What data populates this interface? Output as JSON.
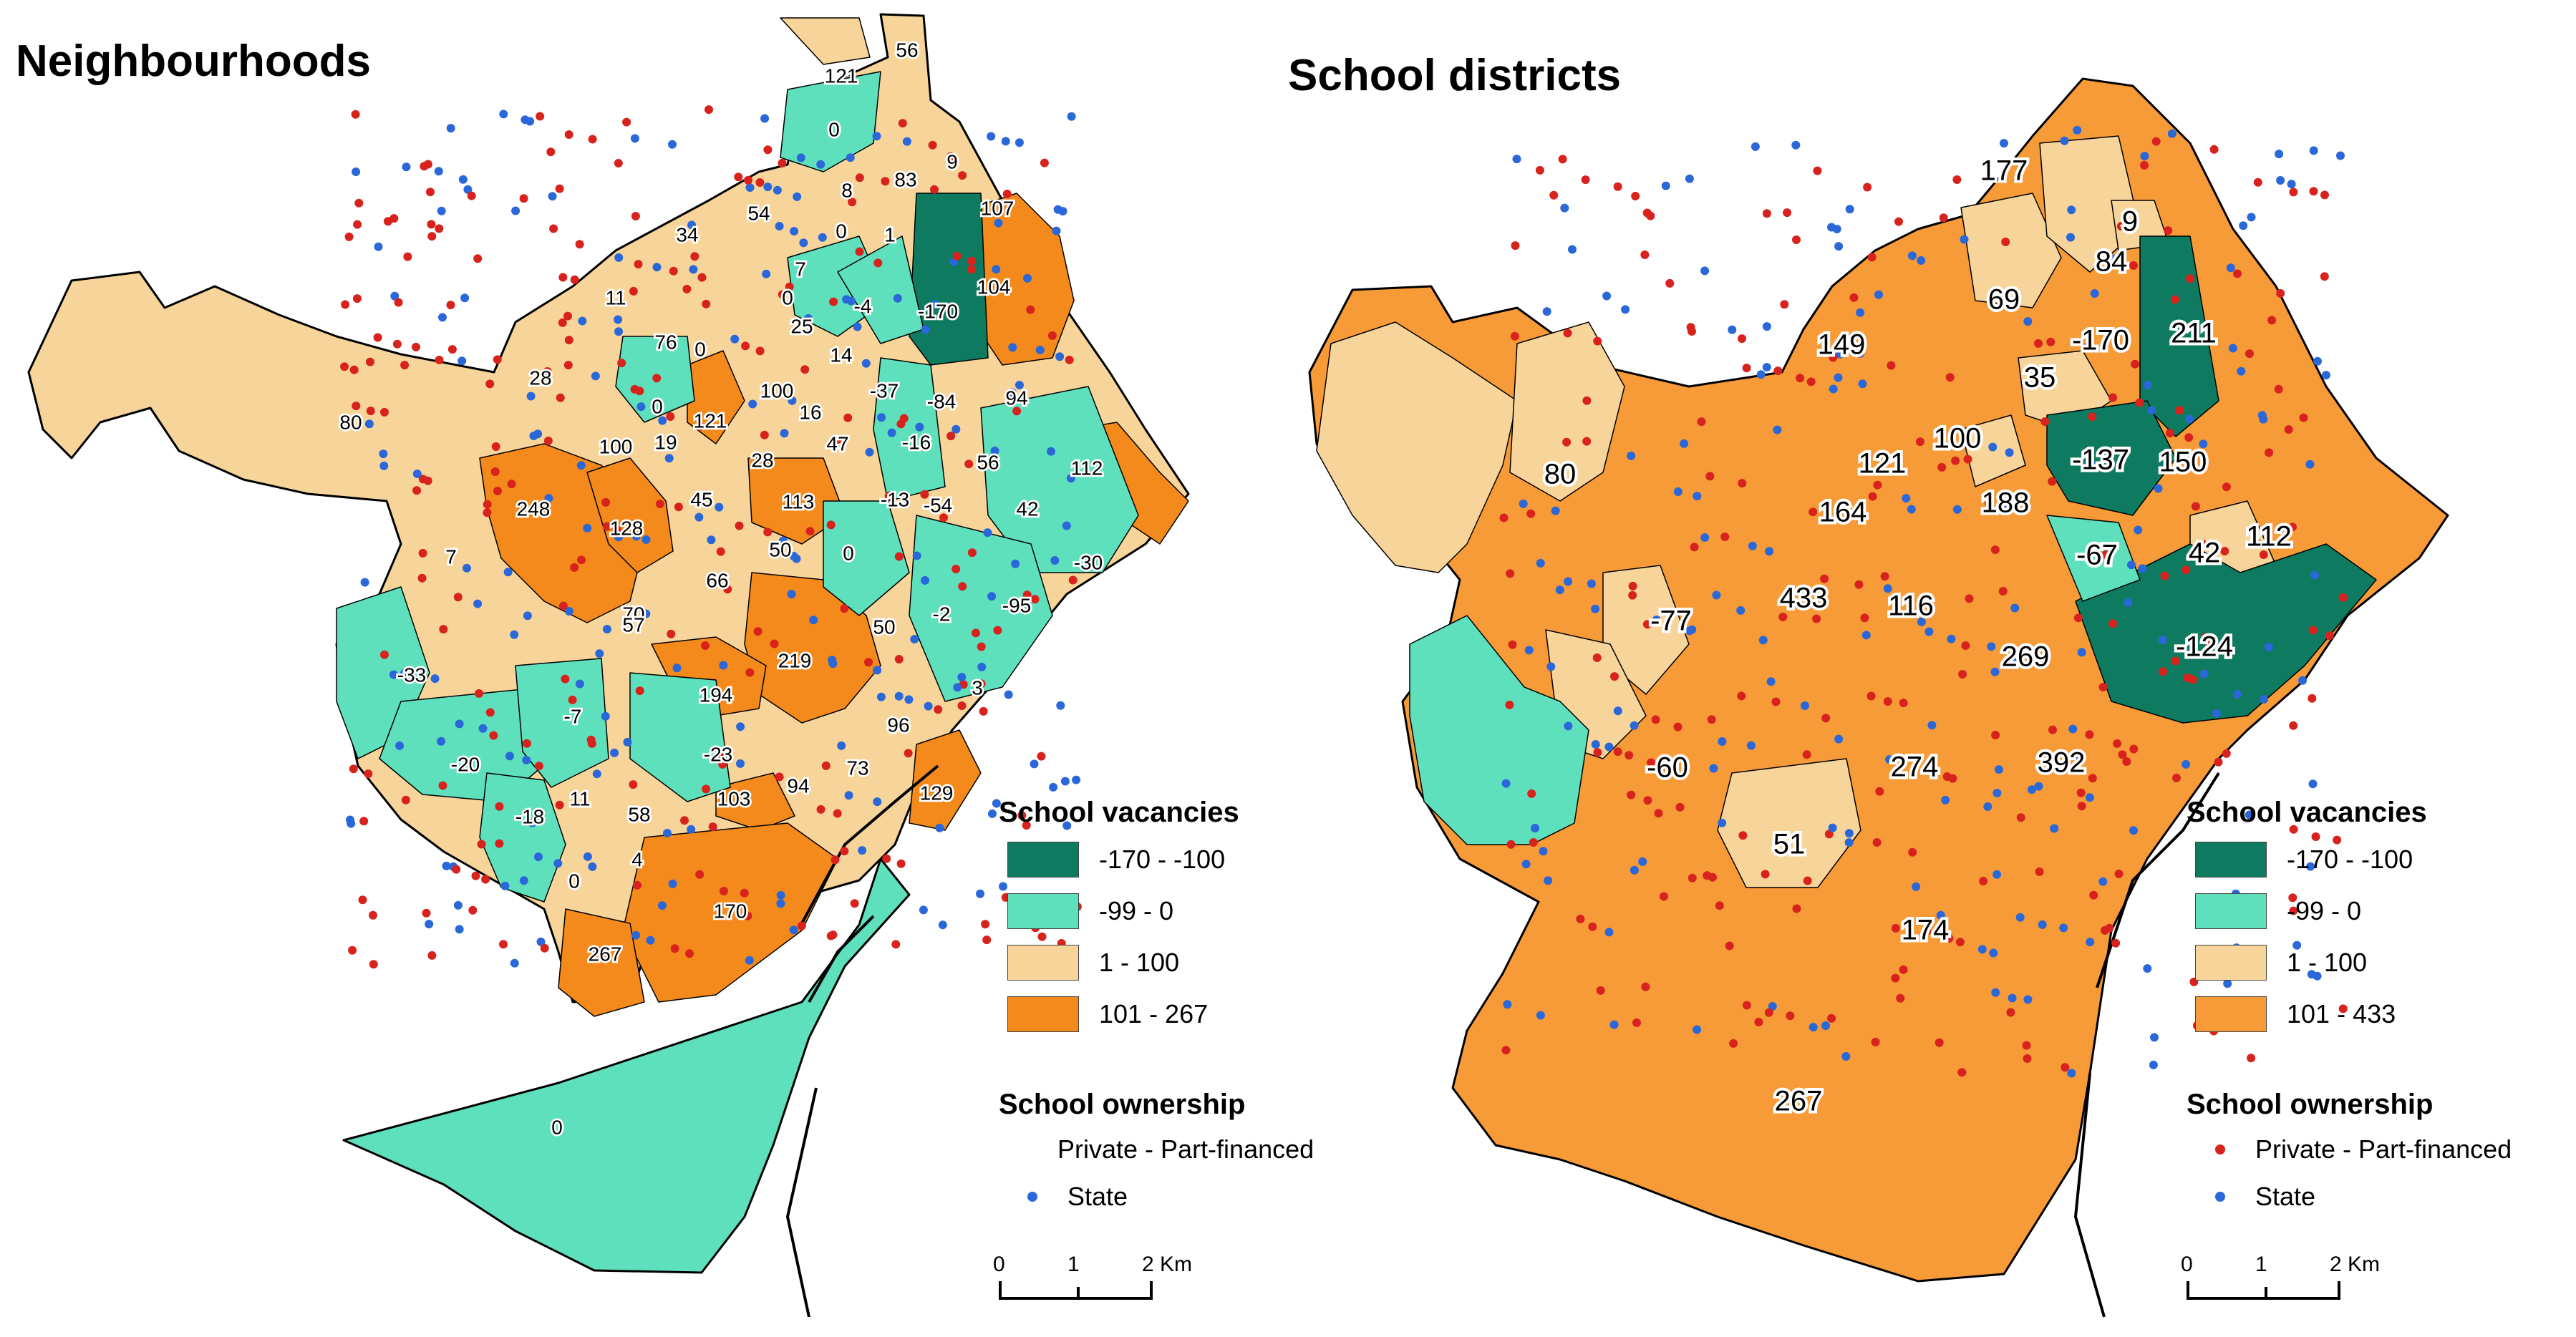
{
  "maps": [
    {
      "title": "Neighbourhoods",
      "values": [
        "121",
        "56",
        "0",
        "9",
        "83",
        "8",
        "54",
        "34",
        "107",
        "0",
        "1",
        "7",
        "11",
        "104",
        "0",
        "-4",
        "-170",
        "25",
        "76",
        "0",
        "14",
        "28",
        "-37",
        "-84",
        "94",
        "100",
        "0",
        "121",
        "16",
        "-16",
        "80",
        "100",
        "19",
        "47",
        "56",
        "112",
        "28",
        "248",
        "128",
        "45",
        "113",
        "-13",
        "-54",
        "42",
        "7",
        "50",
        "0",
        "66",
        "-30",
        "70",
        "57",
        "-2",
        "-95",
        "50",
        "219",
        "-33",
        "194",
        "3",
        "-7",
        "96",
        "-20",
        "-23",
        "94",
        "73",
        "129",
        "11",
        "-18",
        "58",
        "103",
        "4",
        "0",
        "170",
        "267",
        "0"
      ],
      "legend": {
        "title": "School vacancies",
        "classes": [
          {
            "label": "-170 - -100",
            "color": "#0e7a5f"
          },
          {
            "label": "-99 - 0",
            "color": "#5ee0bd"
          },
          {
            "label": "1 - 100",
            "color": "#f7d59a"
          },
          {
            "label": "101 - 267",
            "color": "#f4891c"
          }
        ]
      },
      "ownership": {
        "title": "School ownership",
        "items": [
          {
            "label": "Private - Part-financed",
            "color": "#d8221d"
          },
          {
            "label": "State",
            "color": "#2a67d8"
          }
        ]
      },
      "scale": {
        "labels": [
          "0",
          "1",
          "2 Km"
        ]
      }
    },
    {
      "title": "School districts",
      "values": [
        "177",
        "9",
        "84",
        "69",
        "149",
        "-170",
        "211",
        "35",
        "80",
        "121",
        "100",
        "-137",
        "150",
        "164",
        "188",
        "-67",
        "42",
        "112",
        "433",
        "116",
        "-77",
        "269",
        "-124",
        "-60",
        "274",
        "392",
        "51",
        "174",
        "267"
      ],
      "legend": {
        "title": "School vacancies",
        "classes": [
          {
            "label": "-170 - -100",
            "color": "#0e7a5f"
          },
          {
            "label": "-99 - 0",
            "color": "#5ee0bd"
          },
          {
            "label": "1 - 100",
            "color": "#f7d59a"
          },
          {
            "label": "101 - 433",
            "color": "#f79a38"
          }
        ]
      },
      "ownership": {
        "title": "School ownership",
        "items": [
          {
            "label": "Private - Part-financed",
            "color": "#d8221d"
          },
          {
            "label": "State",
            "color": "#2a67d8"
          }
        ]
      },
      "scale": {
        "labels": [
          "0",
          "1",
          "2 Km"
        ]
      }
    }
  ]
}
